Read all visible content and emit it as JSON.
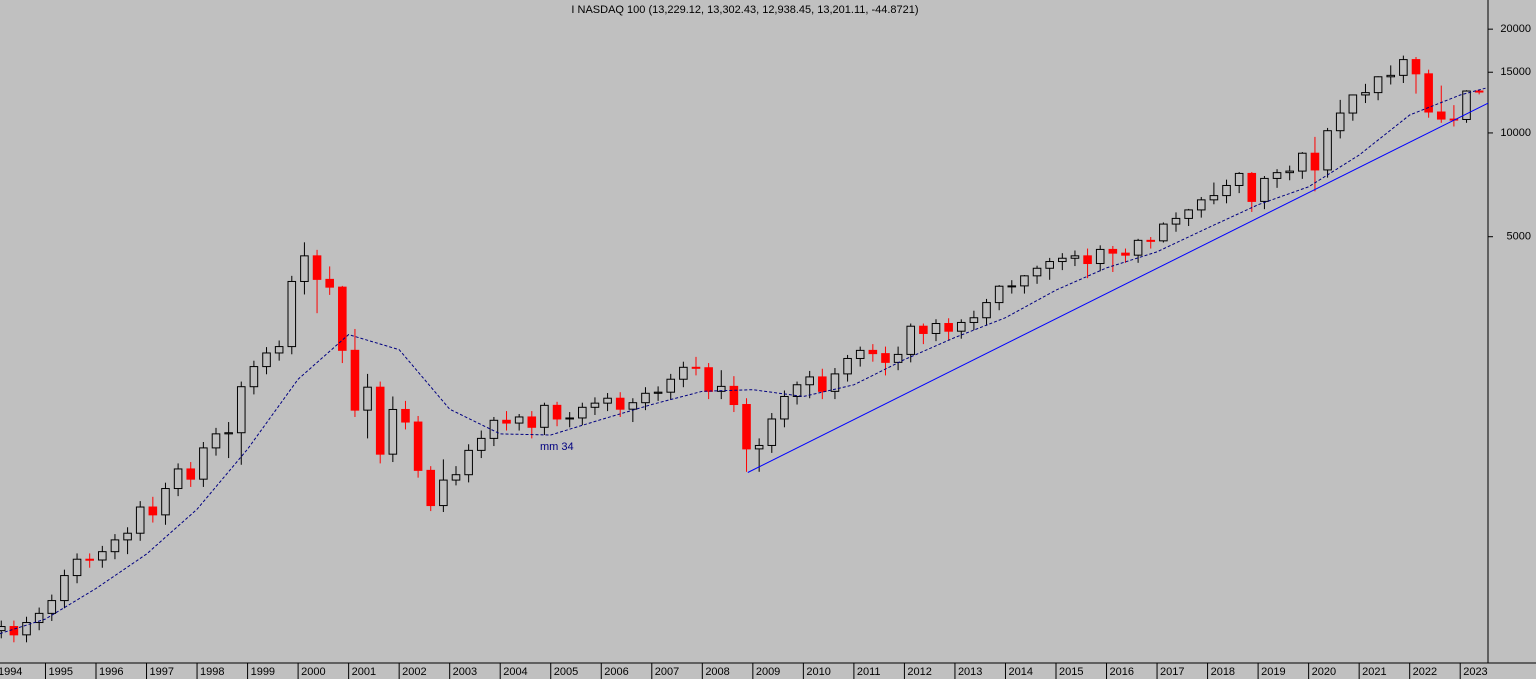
{
  "chart_data": {
    "type": "candlestick",
    "title": "I NASDAQ 100 (13,229.12, 13,302.43, 12,938.45, 13,201.11, -44.8721)",
    "log_scale": true,
    "up_color": "#000000",
    "down_color": "#ff0000",
    "xlim": [
      1994.1,
      2023.55
    ],
    "ylim": [
      290,
      24300
    ],
    "xticks": [
      1994,
      1995,
      1996,
      1997,
      1998,
      1999,
      2000,
      2001,
      2002,
      2003,
      2004,
      2005,
      2006,
      2007,
      2008,
      2009,
      2010,
      2011,
      2012,
      2013,
      2014,
      2015,
      2016,
      2017,
      2018,
      2019,
      2020,
      2021,
      2022,
      2023
    ],
    "yticks": [
      5000,
      10000,
      15000,
      20000
    ],
    "x": [
      1994.125,
      1994.375,
      1994.625,
      1994.875,
      1995.125,
      1995.375,
      1995.625,
      1995.875,
      1996.125,
      1996.375,
      1996.625,
      1996.875,
      1997.125,
      1997.375,
      1997.625,
      1997.875,
      1998.125,
      1998.375,
      1998.625,
      1998.875,
      1999.125,
      1999.375,
      1999.625,
      1999.875,
      2000.125,
      2000.375,
      2000.625,
      2000.875,
      2001.125,
      2001.375,
      2001.625,
      2001.875,
      2002.125,
      2002.375,
      2002.625,
      2002.875,
      2003.125,
      2003.375,
      2003.625,
      2003.875,
      2004.125,
      2004.375,
      2004.625,
      2004.875,
      2005.125,
      2005.375,
      2005.625,
      2005.875,
      2006.125,
      2006.375,
      2006.625,
      2006.875,
      2007.125,
      2007.375,
      2007.625,
      2007.875,
      2008.125,
      2008.375,
      2008.625,
      2008.875,
      2009.125,
      2009.375,
      2009.625,
      2009.875,
      2010.125,
      2010.375,
      2010.625,
      2010.875,
      2011.125,
      2011.375,
      2011.625,
      2011.875,
      2012.125,
      2012.375,
      2012.625,
      2012.875,
      2013.125,
      2013.375,
      2013.625,
      2013.875,
      2014.125,
      2014.375,
      2014.625,
      2014.875,
      2015.125,
      2015.375,
      2015.625,
      2015.875,
      2016.125,
      2016.375,
      2016.625,
      2016.875,
      2017.125,
      2017.375,
      2017.625,
      2017.875,
      2018.125,
      2018.375,
      2018.625,
      2018.875,
      2019.125,
      2019.375,
      2019.625,
      2019.875,
      2020.125,
      2020.375,
      2020.625,
      2020.875,
      2021.125,
      2021.375,
      2021.625,
      2021.875,
      2022.125,
      2022.375,
      2022.625,
      2022.875,
      2023.125,
      2023.375
    ],
    "open": [
      360,
      370,
      350,
      380,
      404,
      440,
      520,
      580,
      577,
      610,
      660,
      690,
      822,
      780,
      930,
      1060,
      990,
      1220,
      1340,
      1350,
      1836,
      2100,
      2300,
      2400,
      3708,
      4400,
      3760,
      3570,
      2341,
      1570,
      1830,
      1170,
      1577,
      1450,
      1050,
      830,
      984,
      1020,
      1200,
      1300,
      1467,
      1440,
      1500,
      1400,
      1621,
      1480,
      1490,
      1600,
      1645,
      1700,
      1580,
      1650,
      1757,
      1770,
      1930,
      2090,
      2084,
      1780,
      1840,
      1630,
      1212,
      1240,
      1480,
      1720,
      1860,
      1960,
      1780,
      2000,
      2217,
      2340,
      2290,
      2160,
      2278,
      2750,
      2620,
      2800,
      2660,
      2820,
      2910,
      3220,
      3592,
      3600,
      3850,
      4050,
      4236,
      4330,
      4400,
      4180,
      4593,
      4480,
      4420,
      4880,
      4864,
      5440,
      5650,
      5980,
      6396,
      6580,
      7040,
      7630,
      6330,
      7380,
      7670,
      7750,
      8733,
      7810,
      10150,
      11420,
      12888,
      13090,
      14550,
      14690,
      16320,
      14840,
      11500,
      10970,
      10940,
      13229.12
    ],
    "high": [
      385,
      385,
      395,
      420,
      458,
      541,
      603,
      603,
      634,
      686,
      718,
      855,
      880,
      967,
      1100,
      1110,
      1269,
      1394,
      1450,
      1900,
      2184,
      2392,
      2500,
      3850,
      4816,
      4580,
      4100,
      3600,
      2700,
      2000,
      1900,
      1720,
      1670,
      1510,
      1080,
      1130,
      1080,
      1250,
      1370,
      1500,
      1560,
      1530,
      1560,
      1650,
      1660,
      1550,
      1650,
      1710,
      1760,
      1770,
      1700,
      1830,
      1840,
      2000,
      2170,
      2240,
      2150,
      2050,
      1970,
      1700,
      1300,
      1540,
      1790,
      1900,
      2040,
      2070,
      2080,
      2270,
      2400,
      2440,
      2400,
      2400,
      2800,
      2800,
      2880,
      2900,
      2880,
      3050,
      3300,
      3620,
      3740,
      3870,
      4120,
      4340,
      4480,
      4560,
      4620,
      4720,
      4700,
      4620,
      4930,
      4990,
      5500,
      5880,
      6020,
      6520,
      7180,
      7320,
      7700,
      7700,
      7500,
      7850,
      8040,
      8800,
      9740,
      10340,
      12470,
      12930,
      13880,
      14600,
      15700,
      16760,
      16600,
      15260,
      13720,
      12040,
      13300,
      13302.43
    ],
    "low": [
      342,
      333,
      333,
      361,
      384,
      418,
      494,
      548,
      548,
      580,
      600,
      656,
      741,
      730,
      884,
      940,
      940,
      1159,
      1140,
      1090,
      1744,
      1995,
      2185,
      2280,
      3400,
      3000,
      3390,
      2150,
      1500,
      1300,
      1100,
      1110,
      1380,
      1000,
      800,
      795,
      950,
      969,
      1140,
      1235,
      1370,
      1370,
      1300,
      1330,
      1410,
      1400,
      1420,
      1520,
      1560,
      1500,
      1450,
      1570,
      1670,
      1680,
      1830,
      1980,
      1690,
      1690,
      1550,
      1040,
      1040,
      1180,
      1400,
      1630,
      1700,
      1690,
      1690,
      1900,
      2100,
      2170,
      1980,
      2050,
      2160,
      2440,
      2490,
      2500,
      2530,
      2680,
      2760,
      3060,
      3420,
      3420,
      3650,
      3750,
      4000,
      4110,
      3790,
      3970,
      3950,
      4200,
      4200,
      4620,
      4810,
      5170,
      5370,
      5680,
      6210,
      6250,
      6690,
      5900,
      6010,
      6930,
      7290,
      7360,
      6770,
      7420,
      9640,
      10850,
      12210,
      12440,
      13820,
      13960,
      13000,
      11070,
      10700,
      10440,
      10700,
      12938.45
    ],
    "close": [
      370,
      350,
      380,
      404,
      440,
      520,
      580,
      577,
      610,
      660,
      690,
      822,
      780,
      930,
      1060,
      990,
      1220,
      1340,
      1350,
      1836,
      2100,
      2300,
      2400,
      3708,
      4400,
      3760,
      3570,
      2341,
      1570,
      1830,
      1170,
      1577,
      1450,
      1050,
      830,
      984,
      1020,
      1200,
      1300,
      1467,
      1440,
      1500,
      1400,
      1621,
      1480,
      1490,
      1600,
      1645,
      1700,
      1580,
      1650,
      1757,
      1770,
      1930,
      2090,
      2084,
      1780,
      1840,
      1630,
      1212,
      1240,
      1480,
      1720,
      1860,
      1960,
      1780,
      2000,
      2217,
      2340,
      2290,
      2160,
      2278,
      2750,
      2620,
      2800,
      2660,
      2820,
      2910,
      3220,
      3592,
      3600,
      3850,
      4050,
      4236,
      4330,
      4400,
      4180,
      4593,
      4480,
      4420,
      4880,
      4864,
      5440,
      5650,
      5980,
      6396,
      6580,
      7040,
      7630,
      6330,
      7380,
      7670,
      7750,
      8733,
      7810,
      10150,
      11420,
      12888,
      13090,
      14550,
      14690,
      16320,
      14840,
      11500,
      10970,
      10940,
      13229.12,
      13201.11
    ],
    "moving_average": {
      "annotation": "mm 34",
      "color": "#000080",
      "x": [
        1994.1,
        1995,
        1996,
        1997,
        1998,
        1999,
        2000,
        2001,
        2002,
        2003,
        2004,
        2005,
        2006,
        2007,
        2008,
        2009,
        2010,
        2011,
        2012,
        2013,
        2014,
        2015,
        2016,
        2017,
        2018,
        2019,
        2020,
        2021,
        2022,
        2023,
        2023.5
      ],
      "values": [
        353,
        389,
        477,
        600,
        810,
        1210,
        1930,
        2600,
        2350,
        1580,
        1340,
        1330,
        1475,
        1630,
        1780,
        1800,
        1720,
        1860,
        2200,
        2550,
        2910,
        3500,
        4060,
        4520,
        5300,
        6190,
        6980,
        8630,
        11270,
        12880,
        13480
      ]
    },
    "trendline": {
      "color": "#0000ff",
      "x": [
        2008.9,
        2023.55
      ],
      "values": [
        1035,
        12200
      ]
    }
  }
}
